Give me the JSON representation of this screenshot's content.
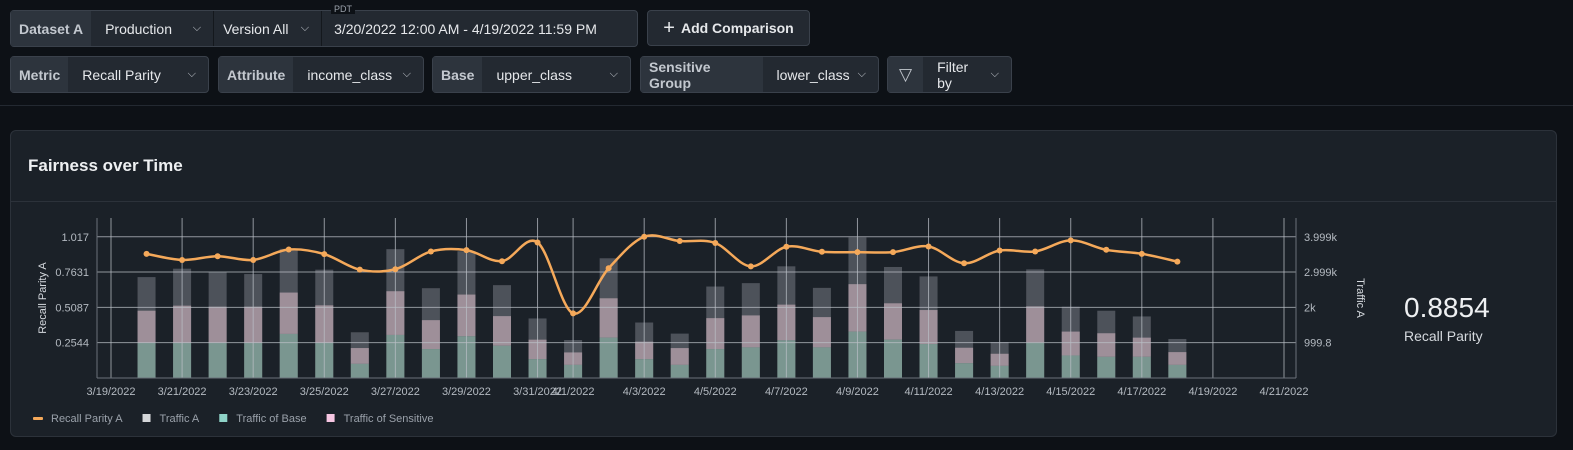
{
  "toolbar": {
    "dataset": {
      "label": "Dataset A",
      "value": "Production"
    },
    "version": {
      "value": "Version All"
    },
    "date_range": {
      "tz_label": "PDT",
      "value": "3/20/2022 12:00 AM - 4/19/2022 11:59 PM"
    },
    "add_comparison": "Add Comparison",
    "metric": {
      "label": "Metric",
      "value": "Recall Parity"
    },
    "attribute": {
      "label": "Attribute",
      "value": "income_class"
    },
    "base": {
      "label": "Base",
      "value": "upper_class"
    },
    "sensitive_group": {
      "label": "Sensitive Group",
      "value": "lower_class"
    },
    "filter": {
      "label": "Filter by",
      "icon": "filter-icon"
    }
  },
  "panel": {
    "title": "Fairness over Time",
    "metric_value": "0.8854",
    "metric_label": "Recall Parity"
  },
  "chart_data": {
    "type": "bar+line",
    "ylabel": "Recall Parity A",
    "y2label": "Traffic A",
    "yticks": [
      "0.2544",
      "0.5087",
      "0.7631",
      "1.017"
    ],
    "y2ticks": [
      "999.8",
      "2k",
      "2.999k",
      "3.999k"
    ],
    "ylim": [
      0,
      1.152
    ],
    "y2lim": [
      0,
      4530
    ],
    "xlim": [
      "3/19/2022",
      "4/21/2022"
    ],
    "xticks": [
      "3/19/2022",
      "3/21/2022",
      "3/23/2022",
      "3/25/2022",
      "3/27/2022",
      "3/29/2022",
      "3/31/2022",
      "4/1/2022",
      "4/3/2022",
      "4/5/2022",
      "4/7/2022",
      "4/9/2022",
      "4/11/2022",
      "4/13/2022",
      "4/15/2022",
      "4/17/2022",
      "4/19/2022",
      "4/21/2022"
    ],
    "grid": true,
    "legend_position": "bottom-left",
    "colors": {
      "line": "#f5a95a",
      "traffic": "#4d525a",
      "base": "#7a9690",
      "sensitive": "#9e8f99"
    },
    "x": [
      "3/20/2022",
      "3/21/2022",
      "3/22/2022",
      "3/23/2022",
      "3/24/2022",
      "3/25/2022",
      "3/26/2022",
      "3/27/2022",
      "3/28/2022",
      "3/29/2022",
      "3/30/2022",
      "3/31/2022",
      "4/1/2022",
      "4/2/2022",
      "4/3/2022",
      "4/4/2022",
      "4/5/2022",
      "4/6/2022",
      "4/7/2022",
      "4/8/2022",
      "4/9/2022",
      "4/10/2022",
      "4/11/2022",
      "4/12/2022",
      "4/13/2022",
      "4/14/2022",
      "4/15/2022",
      "4/16/2022",
      "4/17/2022",
      "4/18/2022"
    ],
    "series": [
      {
        "name": "Recall Parity A",
        "type": "line",
        "axis": "left",
        "values": [
          0.894,
          0.85,
          0.877,
          0.85,
          0.925,
          0.892,
          0.78,
          0.783,
          0.911,
          0.921,
          0.841,
          0.976,
          0.465,
          0.79,
          1.017,
          0.986,
          0.972,
          0.804,
          0.945,
          0.909,
          0.906,
          0.906,
          0.947,
          0.826,
          0.918,
          0.911,
          0.991,
          0.923,
          0.894,
          0.838
        ]
      },
      {
        "name": "Traffic A",
        "type": "bar",
        "axis": "right",
        "values": [
          2857,
          3095,
          2990,
          2943,
          3657,
          3067,
          1295,
          3648,
          2543,
          3590,
          2629,
          1686,
          1076,
          3390,
          1571,
          1257,
          2590,
          2686,
          3162,
          2552,
          3981,
          3143,
          2876,
          1333,
          1019,
          3076,
          2019,
          1905,
          1743,
          1105
        ]
      },
      {
        "name": "Traffic of Base",
        "type": "bar",
        "axis": "right",
        "values": [
          990,
          990,
          990,
          990,
          1248,
          990,
          400,
          1219,
          819,
          1181,
          914,
          533,
          371,
          1143,
          533,
          371,
          819,
          867,
          1067,
          867,
          1314,
          1086,
          962,
          419,
          343,
          1000,
          638,
          600,
          600,
          371
        ]
      },
      {
        "name": "Traffic of Sensitive",
        "type": "bar",
        "axis": "right",
        "values": [
          915,
          1058,
          1029,
          1029,
          1171,
          1067,
          448,
          1238,
          819,
          1181,
          838,
          552,
          353,
          1114,
          495,
          476,
          876,
          905,
          1010,
          857,
          1343,
          1029,
          962,
          438,
          343,
          1029,
          676,
          667,
          543,
          362
        ]
      }
    ],
    "legend": [
      {
        "label": "Recall Parity A",
        "color": "#f5a95a",
        "shape": "line"
      },
      {
        "label": "Traffic A",
        "color": "#d4d6d9",
        "shape": "square"
      },
      {
        "label": "Traffic of Base",
        "color": "#8fd3c8",
        "shape": "square"
      },
      {
        "label": "Traffic of Sensitive",
        "color": "#f6c6e2",
        "shape": "square"
      }
    ]
  }
}
